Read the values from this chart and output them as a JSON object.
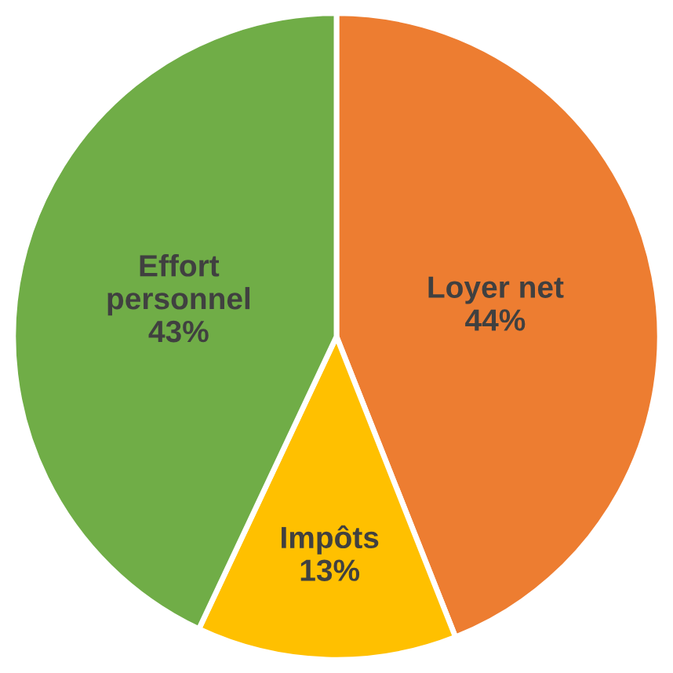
{
  "chart_data": {
    "type": "pie",
    "categories": [
      "Loyer net",
      "Impôts",
      "Effort personnel"
    ],
    "values": [
      44,
      13,
      43
    ],
    "colors": [
      "#ed7d31",
      "#ffc000",
      "#70ad47"
    ],
    "value_labels": [
      "44%",
      "13%",
      "43%"
    ]
  }
}
